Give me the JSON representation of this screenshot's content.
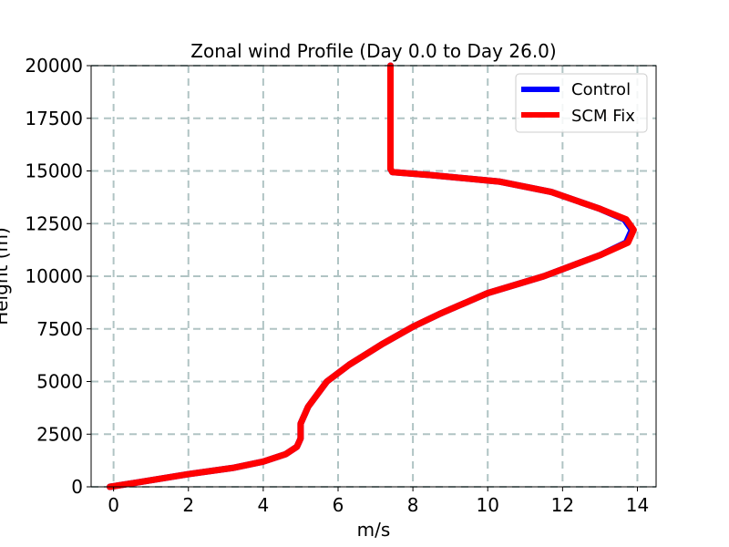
{
  "chart_data": {
    "type": "line",
    "title": "Zonal wind Profile (Day 0.0 to Day 26.0)",
    "xlabel": "m/s",
    "ylabel": "Height (m)",
    "xlim": [
      -0.6,
      14.5
    ],
    "ylim": [
      0,
      20000
    ],
    "xticks": [
      0,
      2,
      4,
      6,
      8,
      10,
      12,
      14
    ],
    "yticks": [
      0,
      2500,
      5000,
      7500,
      10000,
      12500,
      15000,
      17500,
      20000
    ],
    "grid": true,
    "legend_position": "top-right",
    "series": [
      {
        "name": "Control",
        "color": "#0000ff",
        "points": [
          [
            -0.1,
            0
          ],
          [
            0.6,
            200
          ],
          [
            2.0,
            600
          ],
          [
            3.2,
            900
          ],
          [
            4.0,
            1200
          ],
          [
            4.6,
            1550
          ],
          [
            4.9,
            1900
          ],
          [
            5.0,
            2300
          ],
          [
            5.0,
            3000
          ],
          [
            5.2,
            3800
          ],
          [
            5.7,
            5000
          ],
          [
            6.3,
            5800
          ],
          [
            7.2,
            6800
          ],
          [
            8.0,
            7600
          ],
          [
            8.7,
            8200
          ],
          [
            10.0,
            9200
          ],
          [
            11.5,
            10000
          ],
          [
            13.0,
            11000
          ],
          [
            13.7,
            11600
          ],
          [
            13.85,
            12200
          ],
          [
            13.65,
            12700
          ],
          [
            13.0,
            13200
          ],
          [
            11.7,
            14000
          ],
          [
            10.3,
            14500
          ],
          [
            8.5,
            14800
          ],
          [
            7.45,
            14950
          ],
          [
            7.4,
            15100
          ],
          [
            7.4,
            17500
          ],
          [
            7.4,
            20000
          ]
        ]
      },
      {
        "name": "SCM Fix",
        "color": "#ff0000",
        "points": [
          [
            -0.1,
            0
          ],
          [
            0.6,
            200
          ],
          [
            2.0,
            600
          ],
          [
            3.2,
            900
          ],
          [
            4.0,
            1200
          ],
          [
            4.6,
            1550
          ],
          [
            4.9,
            1900
          ],
          [
            5.0,
            2300
          ],
          [
            5.0,
            3000
          ],
          [
            5.2,
            3800
          ],
          [
            5.7,
            5000
          ],
          [
            6.3,
            5800
          ],
          [
            7.2,
            6800
          ],
          [
            8.0,
            7600
          ],
          [
            8.7,
            8200
          ],
          [
            10.0,
            9200
          ],
          [
            11.5,
            10000
          ],
          [
            13.0,
            11000
          ],
          [
            13.75,
            11600
          ],
          [
            13.9,
            12200
          ],
          [
            13.7,
            12700
          ],
          [
            13.0,
            13200
          ],
          [
            11.7,
            14000
          ],
          [
            10.3,
            14500
          ],
          [
            8.5,
            14800
          ],
          [
            7.45,
            14950
          ],
          [
            7.4,
            15100
          ],
          [
            7.4,
            17500
          ],
          [
            7.4,
            20000
          ]
        ]
      }
    ]
  }
}
